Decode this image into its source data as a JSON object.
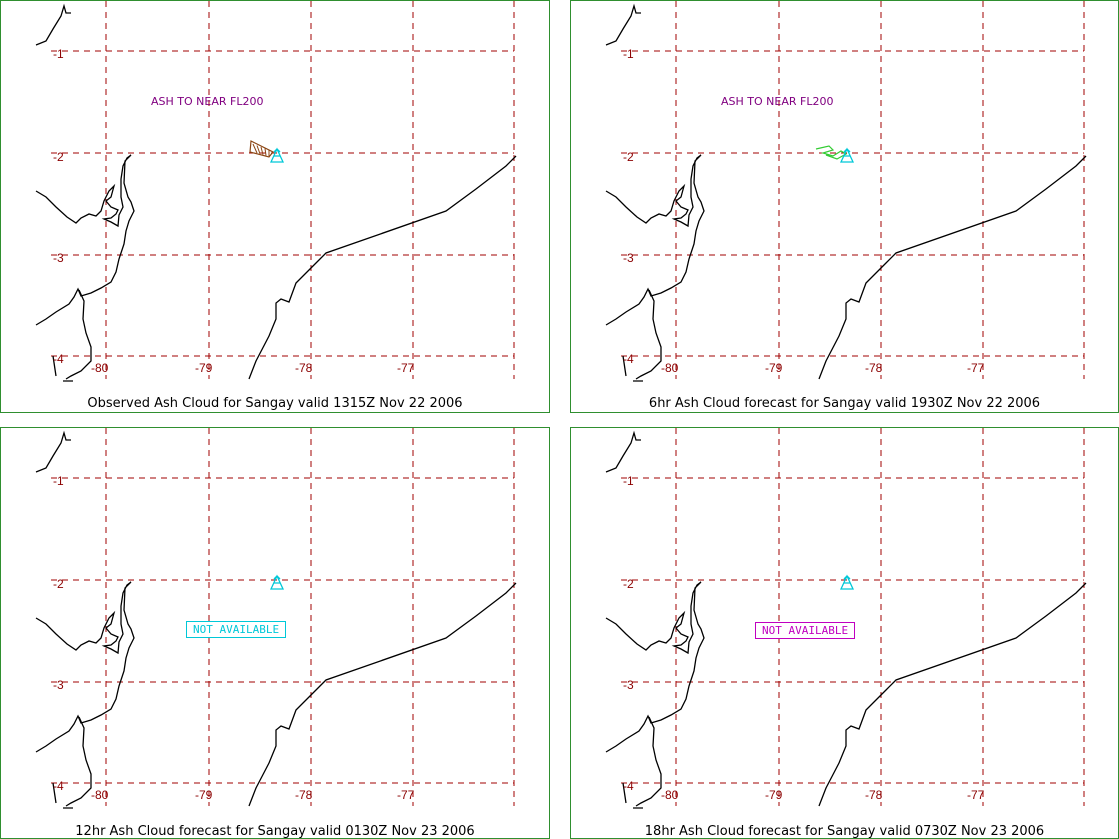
{
  "colors": {
    "grid": "#a00000",
    "axis_label": "#8b0000",
    "coast": "#000000",
    "volcano": "#00c8d8",
    "note": "#800080",
    "panel_border": "#2f8f2f",
    "obs_ash": "#8b4513",
    "fcst_ash": "#33cc33"
  },
  "map": {
    "lon_labels": [
      "-80",
      "-79",
      "-78",
      "-77"
    ],
    "lat_labels": [
      "-1",
      "-2",
      "-3",
      "-4"
    ]
  },
  "panels": [
    {
      "caption": "Observed Ash Cloud for Sangay valid 1315Z Nov 22 2006",
      "note": "ASH TO NEAR FL200",
      "status": "",
      "ash": "observed"
    },
    {
      "caption": "6hr Ash Cloud forecast for Sangay valid 1930Z Nov 22 2006",
      "note": "ASH TO NEAR FL200",
      "status": "",
      "ash": "forecast"
    },
    {
      "caption": "12hr Ash Cloud forecast for Sangay valid 0130Z Nov 23 2006",
      "note": "",
      "status": "NOT AVAILABLE",
      "status_color": "#00c8d8",
      "ash": "none"
    },
    {
      "caption": "18hr Ash Cloud forecast for Sangay valid 0730Z Nov 23 2006",
      "note": "",
      "status": "NOT AVAILABLE",
      "status_color": "#c000c0",
      "ash": "none"
    }
  ]
}
